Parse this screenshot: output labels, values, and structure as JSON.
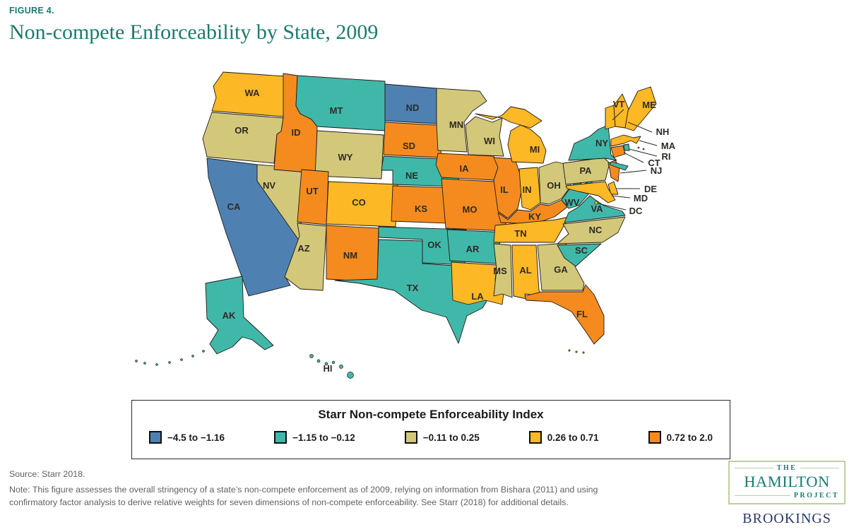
{
  "figure": {
    "label": "FIGURE 4.",
    "title": "Non-compete Enforceability by State, 2009"
  },
  "legend": {
    "title": "Starr Non-compete Enforceability Index"
  },
  "notes": {
    "source": "Source: Starr 2018.",
    "note": "Note: This figure assesses the overall stringency of a state’s non-compete enforcement as of 2009, relying on information from Bishara (2011) and using confirmatory factor analysis to derive relative weights for seven dimensions of non-compete enforceability. See Starr (2018) for additional details."
  },
  "logo": {
    "the": "THE",
    "hamilton": "HAMILTON",
    "project": "PROJECT",
    "brookings": "BROOKINGS"
  },
  "chart_data": {
    "type": "heatmap",
    "map": "United States choropleth (states shaded by index category)",
    "title": "Starr Non-compete Enforceability Index",
    "category_labels": [
      "−4.5 to −1.16",
      "−1.15 to −0.12",
      "−0.11 to 0.25",
      "0.26 to 0.71",
      "0.72 to 2.0"
    ],
    "colors": [
      "#4E81B1",
      "#40B8A9",
      "#D3C77A",
      "#FCB825",
      "#F58B1F"
    ],
    "outline_color": "#1E1A17",
    "states": [
      {
        "abbr": "WA",
        "category_index": 3,
        "range": "0.26 to 0.71"
      },
      {
        "abbr": "OR",
        "category_index": 2,
        "range": "−0.11 to 0.25"
      },
      {
        "abbr": "CA",
        "category_index": 0,
        "range": "−4.5 to −1.16"
      },
      {
        "abbr": "NV",
        "category_index": 2,
        "range": "−0.11 to 0.25"
      },
      {
        "abbr": "ID",
        "category_index": 4,
        "range": "0.72 to 2.0"
      },
      {
        "abbr": "MT",
        "category_index": 1,
        "range": "−1.15 to −0.12"
      },
      {
        "abbr": "WY",
        "category_index": 2,
        "range": "−0.11 to 0.25"
      },
      {
        "abbr": "UT",
        "category_index": 4,
        "range": "0.72 to 2.0"
      },
      {
        "abbr": "AZ",
        "category_index": 2,
        "range": "−0.11 to 0.25"
      },
      {
        "abbr": "CO",
        "category_index": 3,
        "range": "0.26 to 0.71"
      },
      {
        "abbr": "NM",
        "category_index": 4,
        "range": "0.72 to 2.0"
      },
      {
        "abbr": "ND",
        "category_index": 0,
        "range": "−4.5 to −1.16"
      },
      {
        "abbr": "SD",
        "category_index": 4,
        "range": "0.72 to 2.0"
      },
      {
        "abbr": "NE",
        "category_index": 1,
        "range": "−1.15 to −0.12"
      },
      {
        "abbr": "KS",
        "category_index": 4,
        "range": "0.72 to 2.0"
      },
      {
        "abbr": "OK",
        "category_index": 1,
        "range": "−1.15 to −0.12"
      },
      {
        "abbr": "TX",
        "category_index": 1,
        "range": "−1.15 to −0.12"
      },
      {
        "abbr": "MN",
        "category_index": 2,
        "range": "−0.11 to 0.25"
      },
      {
        "abbr": "IA",
        "category_index": 4,
        "range": "0.72 to 2.0"
      },
      {
        "abbr": "MO",
        "category_index": 4,
        "range": "0.72 to 2.0"
      },
      {
        "abbr": "AR",
        "category_index": 1,
        "range": "−1.15 to −0.12"
      },
      {
        "abbr": "LA",
        "category_index": 3,
        "range": "0.26 to 0.71"
      },
      {
        "abbr": "WI",
        "category_index": 2,
        "range": "−0.11 to 0.25"
      },
      {
        "abbr": "IL",
        "category_index": 4,
        "range": "0.72 to 2.0"
      },
      {
        "abbr": "MI",
        "category_index": 3,
        "range": "0.26 to 0.71"
      },
      {
        "abbr": "IN",
        "category_index": 3,
        "range": "0.26 to 0.71"
      },
      {
        "abbr": "OH",
        "category_index": 2,
        "range": "−0.11 to 0.25"
      },
      {
        "abbr": "KY",
        "category_index": 4,
        "range": "0.72 to 2.0"
      },
      {
        "abbr": "TN",
        "category_index": 3,
        "range": "0.26 to 0.71"
      },
      {
        "abbr": "MS",
        "category_index": 2,
        "range": "−0.11 to 0.25"
      },
      {
        "abbr": "AL",
        "category_index": 3,
        "range": "0.26 to 0.71"
      },
      {
        "abbr": "GA",
        "category_index": 2,
        "range": "−0.11 to 0.25"
      },
      {
        "abbr": "FL",
        "category_index": 4,
        "range": "0.72 to 2.0"
      },
      {
        "abbr": "WV",
        "category_index": 1,
        "range": "−1.15 to −0.12"
      },
      {
        "abbr": "VA",
        "category_index": 1,
        "range": "−1.15 to −0.12"
      },
      {
        "abbr": "NC",
        "category_index": 2,
        "range": "−0.11 to 0.25"
      },
      {
        "abbr": "SC",
        "category_index": 1,
        "range": "−1.15 to −0.12"
      },
      {
        "abbr": "PA",
        "category_index": 2,
        "range": "−0.11 to 0.25"
      },
      {
        "abbr": "NY",
        "category_index": 1,
        "range": "−1.15 to −0.12"
      },
      {
        "abbr": "VT",
        "category_index": 3,
        "range": "0.26 to 0.71"
      },
      {
        "abbr": "NH",
        "category_index": 3,
        "range": "0.26 to 0.71"
      },
      {
        "abbr": "ME",
        "category_index": 3,
        "range": "0.26 to 0.71"
      },
      {
        "abbr": "MA",
        "category_index": 3,
        "range": "0.26 to 0.71"
      },
      {
        "abbr": "RI",
        "category_index": 1,
        "range": "−1.15 to −0.12"
      },
      {
        "abbr": "CT",
        "category_index": 4,
        "range": "0.72 to 2.0"
      },
      {
        "abbr": "NJ",
        "category_index": 4,
        "range": "0.72 to 2.0"
      },
      {
        "abbr": "DE",
        "category_index": 3,
        "range": "0.26 to 0.71"
      },
      {
        "abbr": "MD",
        "category_index": 3,
        "range": "0.26 to 0.71"
      },
      {
        "abbr": "DC",
        "category_index": 3,
        "range": "0.26 to 0.71"
      },
      {
        "abbr": "AK",
        "category_index": 1,
        "range": "−1.15 to −0.12"
      },
      {
        "abbr": "HI",
        "category_index": 1,
        "range": "−1.15 to −0.12"
      }
    ]
  }
}
